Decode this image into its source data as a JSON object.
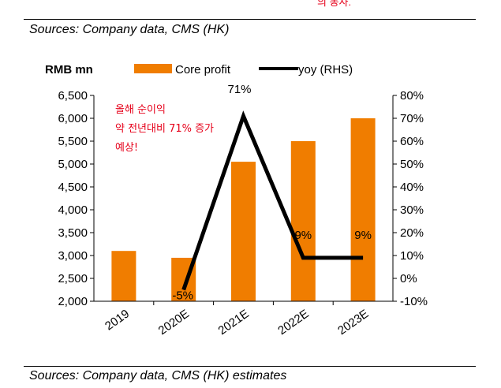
{
  "header_note": "의 동사.",
  "source_top": "Sources: Company data, CMS (HK)",
  "source_bottom": "Sources: Company data, CMS (HK) estimates",
  "chart_data": {
    "type": "bar",
    "ylabel": "RMB mn",
    "categories": [
      "2019",
      "2020E",
      "2021E",
      "2022E",
      "2023E"
    ],
    "series": [
      {
        "name": "Core profit",
        "type": "bar",
        "axis": "left",
        "color": "#f07d00",
        "values": [
          3100,
          2950,
          5050,
          5500,
          6000
        ]
      },
      {
        "name": "yoy (RHS)",
        "type": "line",
        "axis": "right",
        "color": "#000000",
        "values": [
          null,
          -5,
          71,
          9,
          9
        ]
      }
    ],
    "ylim": [
      2000,
      6500
    ],
    "yticks": [
      "2,000",
      "2,500",
      "3,000",
      "3,500",
      "4,000",
      "4,500",
      "5,000",
      "5,500",
      "6,000",
      "6,500"
    ],
    "y2lim": [
      -10,
      80
    ],
    "y2ticks": [
      "-10%",
      "0%",
      "10%",
      "20%",
      "30%",
      "40%",
      "50%",
      "60%",
      "70%",
      "80%"
    ],
    "data_labels": [
      "-5%",
      "71%",
      "9%",
      "9%"
    ],
    "legend": "top",
    "grid": false,
    "annotation_lines": [
      "올해 순이익",
      "약 전년대비 71% 증가",
      "예상!"
    ]
  }
}
